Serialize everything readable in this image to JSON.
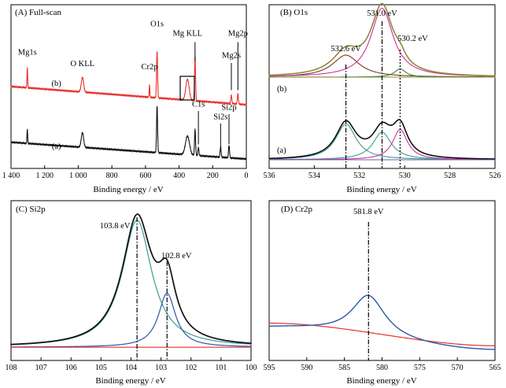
{
  "colors": {
    "black": "#111111",
    "red": "#e8302a",
    "blue": "#2c58a8",
    "teal": "#3f9a95",
    "magenta": "#d0309e",
    "olive": "#8c8a3c",
    "brown": "#7a3a25",
    "green": "#2f8a2f",
    "purple": "#6a5fb0"
  },
  "chart_data": [
    {
      "id": "A",
      "type": "line",
      "title": "(A) Full-scan",
      "xlabel": "Binding energy / eV",
      "ylabel": "",
      "xlim": [
        1400,
        0
      ],
      "x_ticks": [
        1400,
        1200,
        1000,
        800,
        600,
        400,
        200,
        0
      ],
      "x_tick_labels": [
        "1 400",
        "1 200",
        "1 000",
        "800",
        "600",
        "400",
        "200",
        "0"
      ],
      "series": [
        {
          "name": "(b)",
          "color": "red",
          "baseline": 0.58,
          "slope": 0.000125,
          "peaks": [
            [
              1303,
              0.2,
              2
            ],
            [
              975,
              0.14,
              7
            ],
            [
              576,
              0.12,
              2
            ],
            [
              531,
              0.45,
              3
            ],
            [
              350,
              0.2,
              10
            ],
            [
              305,
              0.42,
              3
            ],
            [
              89,
              0.08,
              3
            ],
            [
              50,
              0.1,
              3
            ]
          ]
        },
        {
          "name": "(a)",
          "color": "black",
          "baseline": 0.06,
          "slope": 0.000115,
          "peaks": [
            [
              1303,
              0.14,
              2
            ],
            [
              975,
              0.14,
              7
            ],
            [
              531,
              0.45,
              3
            ],
            [
              350,
              0.18,
              12
            ],
            [
              305,
              0.25,
              3
            ],
            [
              285,
              0.08,
              3
            ],
            [
              153,
              0.1,
              3
            ],
            [
              103,
              0.12,
              3
            ]
          ]
        }
      ],
      "annotations": [
        {
          "text": "Mg1s",
          "x": 1303,
          "y": 1.06
        },
        {
          "text": "O KLL",
          "x": 975,
          "y": 0.95
        },
        {
          "text": "Cr2p",
          "x": 576,
          "y": 0.92
        },
        {
          "text": "O1s",
          "x": 531,
          "y": 1.33
        },
        {
          "text": "Mg KLL",
          "x": 350,
          "y": 1.24
        },
        {
          "text": "Mg2p",
          "x": 50,
          "y": 1.24
        },
        {
          "text": "Mg2s",
          "x": 89,
          "y": 1.03
        },
        {
          "text": "C1s",
          "x": 285,
          "y": 0.56
        },
        {
          "text": "Si2s",
          "x": 153,
          "y": 0.44
        },
        {
          "text": "Si2p",
          "x": 103,
          "y": 0.53
        },
        {
          "text": "(b)",
          "x": 1130,
          "y": 0.76
        },
        {
          "text": "(a)",
          "x": 1130,
          "y": 0.16
        }
      ]
    },
    {
      "id": "B",
      "type": "line",
      "title": "(B) O1s",
      "xlabel": "Binding energy / eV",
      "ylabel": "",
      "xlim": [
        536,
        526
      ],
      "x_ticks": [
        536,
        534,
        532,
        530,
        528,
        526
      ],
      "vlines": [
        532.6,
        531.0,
        530.2
      ],
      "labels": [
        {
          "text": "532.6 eV",
          "x": 532.6
        },
        {
          "text": "531.0 eV",
          "x": 531.0
        },
        {
          "text": "530.2 eV",
          "x": 530.2
        }
      ],
      "groups": [
        {
          "name": "(b)",
          "offset": 0.64,
          "components": [
            {
              "color": "brown",
              "center": 532.6,
              "height": 0.16,
              "width": 0.72
            },
            {
              "color": "magenta",
              "center": 531.0,
              "height": 0.5,
              "width": 0.6
            },
            {
              "color": "green",
              "center": 530.2,
              "height": 0.06,
              "width": 0.3
            }
          ],
          "envelope_color": "olive"
        },
        {
          "name": "(a)",
          "offset": 0.04,
          "components": [
            {
              "color": "teal",
              "center": 532.6,
              "height": 0.26,
              "width": 0.55
            },
            {
              "color": "teal",
              "center": 531.0,
              "height": 0.2,
              "width": 0.5
            },
            {
              "color": "magenta",
              "center": 530.2,
              "height": 0.22,
              "width": 0.4
            }
          ],
          "envelope_color": "black",
          "baseline_color": "purple"
        }
      ]
    },
    {
      "id": "C",
      "type": "line",
      "title": "(C) Si2p",
      "xlabel": "Binding energy / eV",
      "ylabel": "",
      "xlim": [
        108,
        100
      ],
      "x_ticks": [
        108,
        107,
        106,
        105,
        104,
        103,
        102,
        101,
        100
      ],
      "vlines": [
        103.8,
        102.8
      ],
      "labels": [
        {
          "text": "103.8 eV",
          "x": 103.8
        },
        {
          "text": "102.8 eV",
          "x": 102.8
        }
      ],
      "components": [
        {
          "color": "teal",
          "center": 103.8,
          "height": 0.85,
          "width": 0.6
        },
        {
          "color": "blue",
          "center": 102.8,
          "height": 0.36,
          "width": 0.35
        }
      ],
      "envelope_color": "black",
      "baseline_color": "red",
      "baseline_level": 0.015
    },
    {
      "id": "D",
      "type": "line",
      "title": "(D) Cr2p",
      "xlabel": "Binding energy / eV",
      "ylabel": "",
      "xlim": [
        595,
        565
      ],
      "x_ticks": [
        595,
        590,
        585,
        580,
        575,
        570,
        565
      ],
      "vlines": [
        581.8
      ],
      "labels": [
        {
          "text": "581.8 eV",
          "x": 581.8
        }
      ],
      "peak": {
        "color": "blue",
        "center": 581.8,
        "height": 0.52,
        "width": 2.7
      },
      "background": {
        "color": "red",
        "start": 0.3,
        "end": 0.02
      }
    }
  ]
}
